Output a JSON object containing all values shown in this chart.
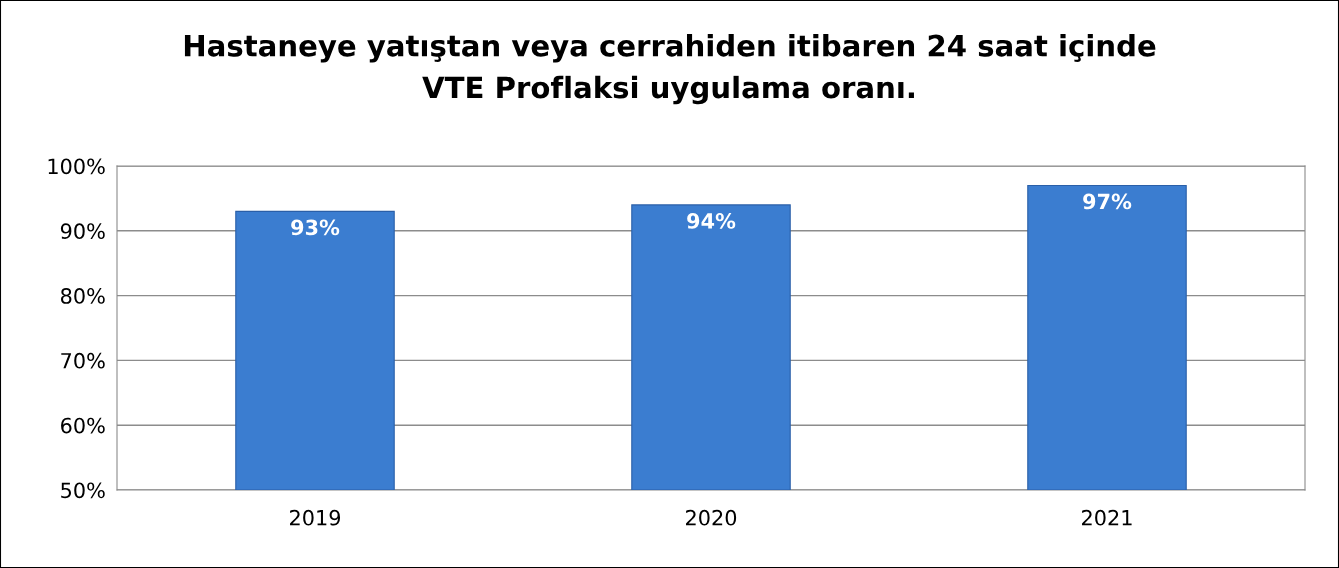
{
  "chart_data": {
    "type": "bar",
    "title": "Hastaneye yatıştan veya cerrahiden itibaren 24 saat içinde\nVTE Proflaksi uygulama oranı.",
    "categories": [
      "2019",
      "2020",
      "2021"
    ],
    "values": [
      93,
      94,
      97
    ],
    "value_labels": [
      "93%",
      "94%",
      "97%"
    ],
    "color": "#3b7dd0",
    "ylim": [
      50,
      100
    ],
    "yticks": [
      {
        "value": 50,
        "label": "50%"
      },
      {
        "value": 60,
        "label": "60%"
      },
      {
        "value": 70,
        "label": "70%"
      },
      {
        "value": 80,
        "label": "80%"
      },
      {
        "value": 90,
        "label": "90%"
      },
      {
        "value": 100,
        "label": "100%"
      }
    ],
    "grid": "y"
  }
}
